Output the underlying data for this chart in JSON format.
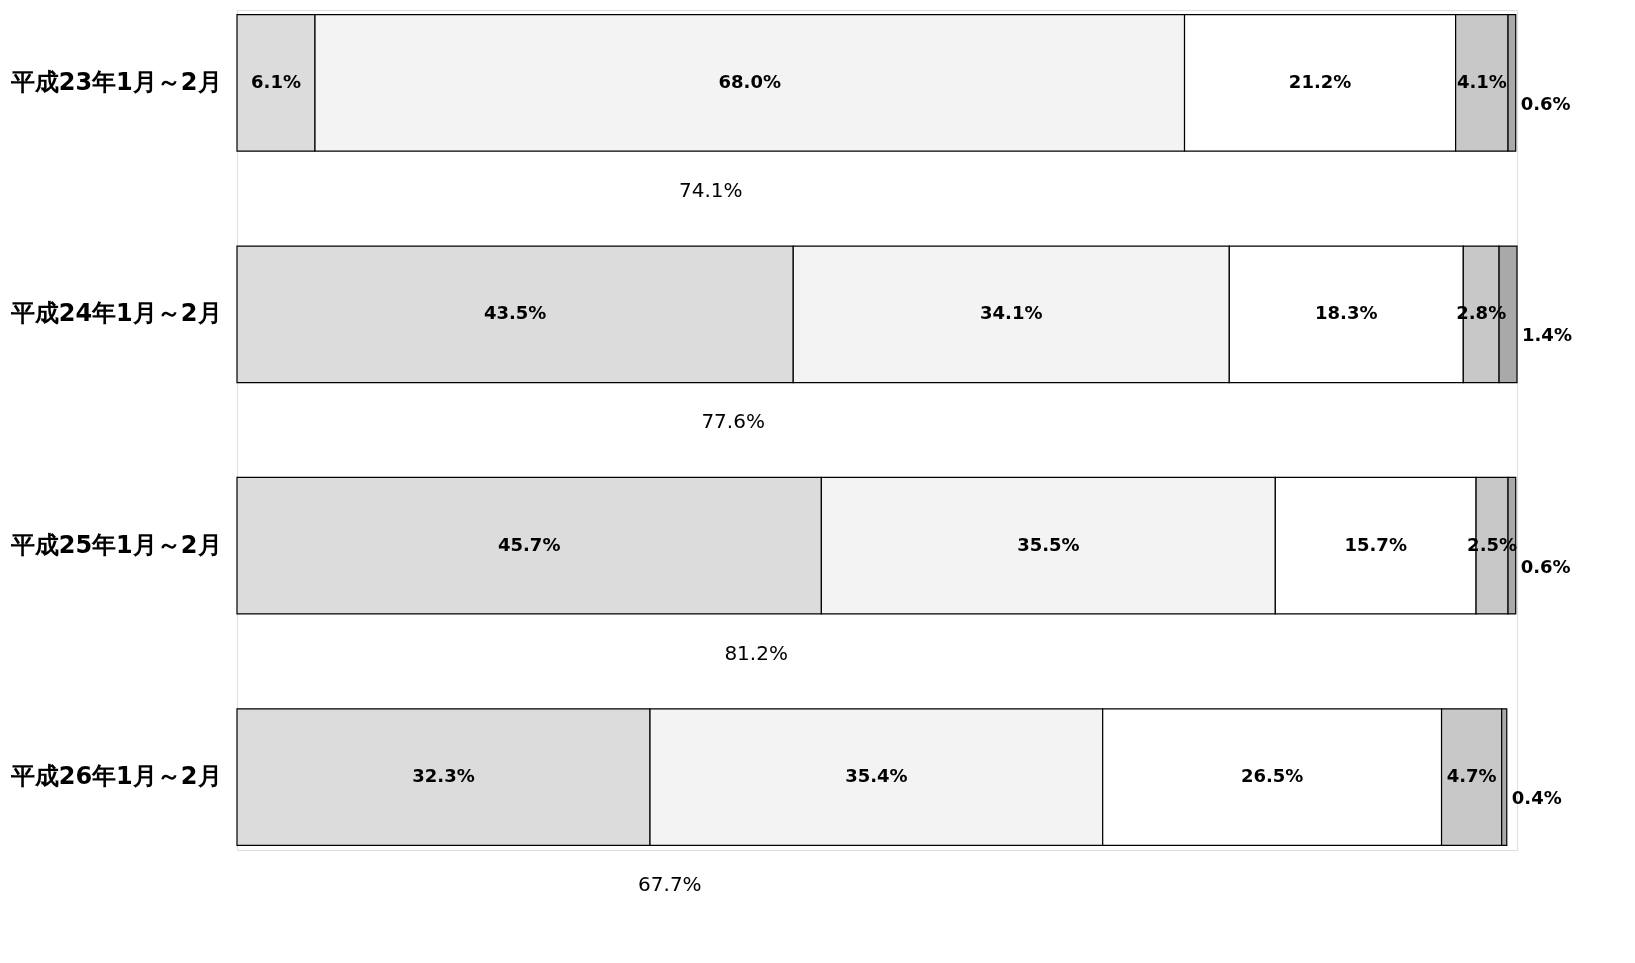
{
  "chart_data": {
    "type": "bar",
    "orientation": "horizontal",
    "stacked": true,
    "categories": [
      "平成23年1月～2月",
      "平成24年1月～2月",
      "平成25年1月～2月",
      "平成26年1月～2月"
    ],
    "series": [
      {
        "color": "#dcdcdc",
        "values": [
          6.1,
          43.5,
          45.7,
          32.3
        ],
        "value_labels": [
          "6.1%",
          "43.5%",
          "45.7%",
          "32.3%"
        ]
      },
      {
        "color": "#f3f3f3",
        "values": [
          68.0,
          34.1,
          35.5,
          35.4
        ],
        "value_labels": [
          "68.0%",
          "34.1%",
          "35.5%",
          "35.4%"
        ]
      },
      {
        "color": "#ffffff",
        "values": [
          21.2,
          18.3,
          15.7,
          26.5
        ],
        "value_labels": [
          "21.2%",
          "18.3%",
          "15.7%",
          "26.5%"
        ]
      },
      {
        "color": "#c8c8c8",
        "values": [
          4.1,
          2.8,
          2.5,
          4.7
        ],
        "value_labels": [
          "4.1%",
          "2.8%",
          "2.5%",
          "4.7%"
        ]
      },
      {
        "color": "#a9a9a9",
        "values": [
          0.6,
          1.4,
          0.6,
          0.4
        ],
        "value_labels": [
          "0.6%",
          "1.4%",
          "0.6%",
          "0.4%"
        ]
      }
    ],
    "annotations": [
      "74.1%",
      "77.6%",
      "81.2%",
      "67.7%"
    ]
  }
}
